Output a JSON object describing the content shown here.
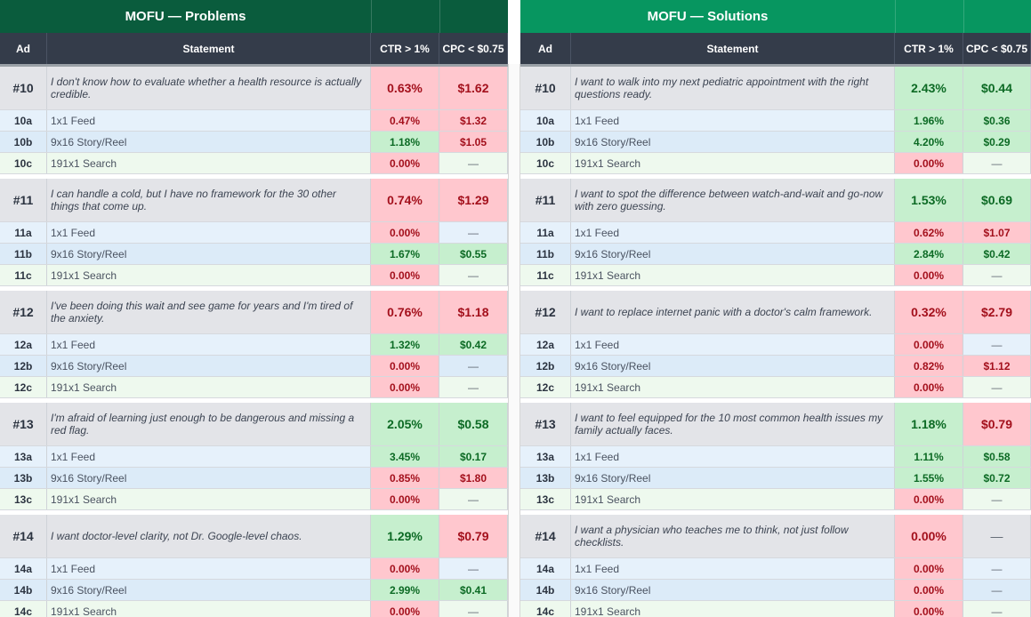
{
  "tables": [
    {
      "title": "MOFU — Problems",
      "headers": {
        "ad": "Ad",
        "statement": "Statement",
        "ctr": "CTR > 1%",
        "cpc": "CPC < $0.75"
      },
      "groups": [
        {
          "id": "#10",
          "statement": "I don't know how to evaluate whether a health resource is actually credible.",
          "ctr": "0.63%",
          "cpc": "$1.62",
          "ctr_status": "bad",
          "cpc_status": "bad",
          "variants": [
            {
              "id": "10a",
              "label": "1x1 Feed",
              "ctr": "0.47%",
              "cpc": "$1.32",
              "ctr_status": "bad",
              "cpc_status": "bad"
            },
            {
              "id": "10b",
              "label": "9x16 Story/Reel",
              "ctr": "1.18%",
              "cpc": "$1.05",
              "ctr_status": "good",
              "cpc_status": "bad"
            },
            {
              "id": "10c",
              "label": "191x1 Search",
              "ctr": "0.00%",
              "cpc": "—",
              "ctr_status": "bad",
              "cpc_status": "none"
            }
          ]
        },
        {
          "id": "#11",
          "statement": "I can handle a cold, but I have no framework for the 30 other things that come up.",
          "ctr": "0.74%",
          "cpc": "$1.29",
          "ctr_status": "bad",
          "cpc_status": "bad",
          "variants": [
            {
              "id": "11a",
              "label": "1x1 Feed",
              "ctr": "0.00%",
              "cpc": "—",
              "ctr_status": "bad",
              "cpc_status": "none"
            },
            {
              "id": "11b",
              "label": "9x16 Story/Reel",
              "ctr": "1.67%",
              "cpc": "$0.55",
              "ctr_status": "good",
              "cpc_status": "good"
            },
            {
              "id": "11c",
              "label": "191x1 Search",
              "ctr": "0.00%",
              "cpc": "—",
              "ctr_status": "bad",
              "cpc_status": "none"
            }
          ]
        },
        {
          "id": "#12",
          "statement": "I've been doing this wait and see game for years and I'm tired of the anxiety.",
          "ctr": "0.76%",
          "cpc": "$1.18",
          "ctr_status": "bad",
          "cpc_status": "bad",
          "variants": [
            {
              "id": "12a",
              "label": "1x1 Feed",
              "ctr": "1.32%",
              "cpc": "$0.42",
              "ctr_status": "good",
              "cpc_status": "good"
            },
            {
              "id": "12b",
              "label": "9x16 Story/Reel",
              "ctr": "0.00%",
              "cpc": "—",
              "ctr_status": "bad",
              "cpc_status": "none"
            },
            {
              "id": "12c",
              "label": "191x1 Search",
              "ctr": "0.00%",
              "cpc": "—",
              "ctr_status": "bad",
              "cpc_status": "none"
            }
          ]
        },
        {
          "id": "#13",
          "statement": "I'm afraid of learning just enough to be dangerous and missing a red flag.",
          "ctr": "2.05%",
          "cpc": "$0.58",
          "ctr_status": "good",
          "cpc_status": "good",
          "variants": [
            {
              "id": "13a",
              "label": "1x1 Feed",
              "ctr": "3.45%",
              "cpc": "$0.17",
              "ctr_status": "good",
              "cpc_status": "good"
            },
            {
              "id": "13b",
              "label": "9x16 Story/Reel",
              "ctr": "0.85%",
              "cpc": "$1.80",
              "ctr_status": "bad",
              "cpc_status": "bad"
            },
            {
              "id": "13c",
              "label": "191x1 Search",
              "ctr": "0.00%",
              "cpc": "—",
              "ctr_status": "bad",
              "cpc_status": "none"
            }
          ]
        },
        {
          "id": "#14",
          "statement": "I want doctor-level clarity, not Dr. Google-level chaos.",
          "ctr": "1.29%",
          "cpc": "$0.79",
          "ctr_status": "good",
          "cpc_status": "bad",
          "variants": [
            {
              "id": "14a",
              "label": "1x1 Feed",
              "ctr": "0.00%",
              "cpc": "—",
              "ctr_status": "bad",
              "cpc_status": "none"
            },
            {
              "id": "14b",
              "label": "9x16 Story/Reel",
              "ctr": "2.99%",
              "cpc": "$0.41",
              "ctr_status": "good",
              "cpc_status": "good"
            },
            {
              "id": "14c",
              "label": "191x1 Search",
              "ctr": "0.00%",
              "cpc": "—",
              "ctr_status": "bad",
              "cpc_status": "none"
            }
          ]
        }
      ]
    },
    {
      "title": "MOFU — Solutions",
      "headers": {
        "ad": "Ad",
        "statement": "Statement",
        "ctr": "CTR > 1%",
        "cpc": "CPC < $0.75"
      },
      "groups": [
        {
          "id": "#10",
          "statement": "I want to walk into my next pediatric appointment with the right questions ready.",
          "ctr": "2.43%",
          "cpc": "$0.44",
          "ctr_status": "good",
          "cpc_status": "good",
          "variants": [
            {
              "id": "10a",
              "label": "1x1 Feed",
              "ctr": "1.96%",
              "cpc": "$0.36",
              "ctr_status": "good",
              "cpc_status": "good"
            },
            {
              "id": "10b",
              "label": "9x16 Story/Reel",
              "ctr": "4.20%",
              "cpc": "$0.29",
              "ctr_status": "good",
              "cpc_status": "good"
            },
            {
              "id": "10c",
              "label": "191x1 Search",
              "ctr": "0.00%",
              "cpc": "—",
              "ctr_status": "bad",
              "cpc_status": "none"
            }
          ]
        },
        {
          "id": "#11",
          "statement": "I want to spot the difference between watch-and-wait and go-now with zero guessing.",
          "ctr": "1.53%",
          "cpc": "$0.69",
          "ctr_status": "good",
          "cpc_status": "good",
          "variants": [
            {
              "id": "11a",
              "label": "1x1 Feed",
              "ctr": "0.62%",
              "cpc": "$1.07",
              "ctr_status": "bad",
              "cpc_status": "bad"
            },
            {
              "id": "11b",
              "label": "9x16 Story/Reel",
              "ctr": "2.84%",
              "cpc": "$0.42",
              "ctr_status": "good",
              "cpc_status": "good"
            },
            {
              "id": "11c",
              "label": "191x1 Search",
              "ctr": "0.00%",
              "cpc": "—",
              "ctr_status": "bad",
              "cpc_status": "none"
            }
          ]
        },
        {
          "id": "#12",
          "statement": "I want to replace internet panic with a doctor's calm framework.",
          "ctr": "0.32%",
          "cpc": "$2.79",
          "ctr_status": "bad",
          "cpc_status": "bad",
          "variants": [
            {
              "id": "12a",
              "label": "1x1 Feed",
              "ctr": "0.00%",
              "cpc": "—",
              "ctr_status": "bad",
              "cpc_status": "none"
            },
            {
              "id": "12b",
              "label": "9x16 Story/Reel",
              "ctr": "0.82%",
              "cpc": "$1.12",
              "ctr_status": "bad",
              "cpc_status": "bad"
            },
            {
              "id": "12c",
              "label": "191x1 Search",
              "ctr": "0.00%",
              "cpc": "—",
              "ctr_status": "bad",
              "cpc_status": "none"
            }
          ]
        },
        {
          "id": "#13",
          "statement": "I want to feel equipped for the 10 most common health issues my family actually faces.",
          "ctr": "1.18%",
          "cpc": "$0.79",
          "ctr_status": "good",
          "cpc_status": "bad",
          "variants": [
            {
              "id": "13a",
              "label": "1x1 Feed",
              "ctr": "1.11%",
              "cpc": "$0.58",
              "ctr_status": "good",
              "cpc_status": "good"
            },
            {
              "id": "13b",
              "label": "9x16 Story/Reel",
              "ctr": "1.55%",
              "cpc": "$0.72",
              "ctr_status": "good",
              "cpc_status": "good"
            },
            {
              "id": "13c",
              "label": "191x1 Search",
              "ctr": "0.00%",
              "cpc": "—",
              "ctr_status": "bad",
              "cpc_status": "none"
            }
          ]
        },
        {
          "id": "#14",
          "statement": "I want a physician who teaches me to think, not just follow checklists.",
          "ctr": "0.00%",
          "cpc": "—",
          "ctr_status": "bad",
          "cpc_status": "none",
          "variants": [
            {
              "id": "14a",
              "label": "1x1 Feed",
              "ctr": "0.00%",
              "cpc": "—",
              "ctr_status": "bad",
              "cpc_status": "none"
            },
            {
              "id": "14b",
              "label": "9x16 Story/Reel",
              "ctr": "0.00%",
              "cpc": "—",
              "ctr_status": "bad",
              "cpc_status": "none"
            },
            {
              "id": "14c",
              "label": "191x1 Search",
              "ctr": "0.00%",
              "cpc": "—",
              "ctr_status": "bad",
              "cpc_status": "none"
            }
          ]
        }
      ]
    }
  ],
  "status_colors": {
    "good_bg": "#c6efce",
    "good_text": "#0c6a24",
    "bad_bg": "#ffc7ce",
    "bad_text": "#a3101c"
  }
}
